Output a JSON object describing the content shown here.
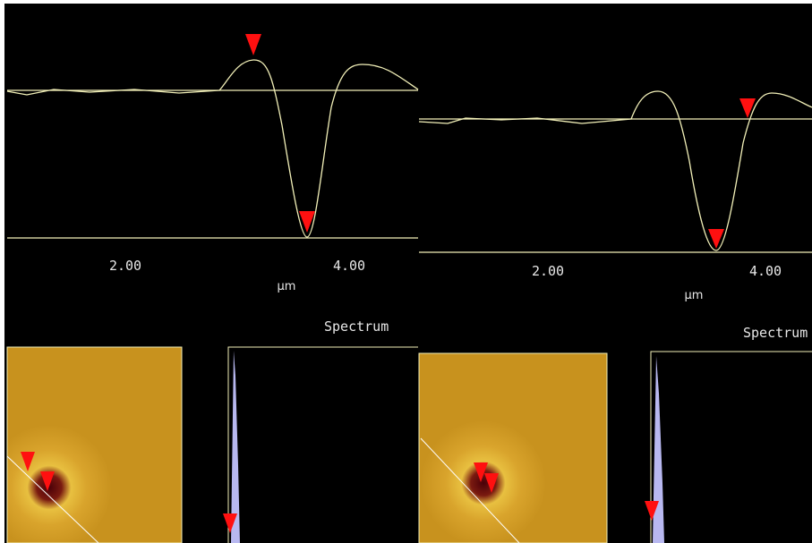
{
  "panels": [
    {
      "ticks": [
        "2.00",
        "4.00"
      ],
      "unit": "µm",
      "label": "Spectrum"
    },
    {
      "ticks": [
        "2.00",
        "4.00"
      ],
      "unit": "µm",
      "label": "Spectrum"
    }
  ]
}
